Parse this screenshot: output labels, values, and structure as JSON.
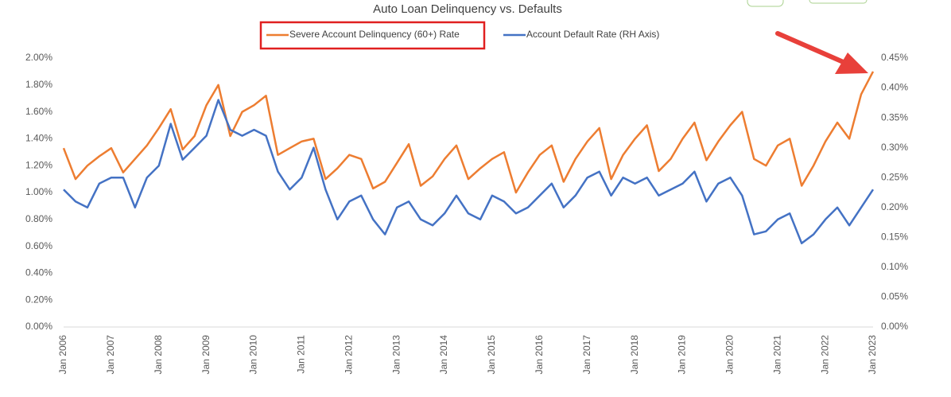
{
  "chart_data": {
    "type": "line",
    "title": "Auto Loan Delinquency vs. Defaults",
    "categories": [
      "Jan 2006",
      null,
      null,
      null,
      "Jan 2007",
      null,
      null,
      null,
      "Jan 2008",
      null,
      null,
      null,
      "Jan 2009",
      null,
      null,
      null,
      "Jan 2010",
      null,
      null,
      null,
      "Jan 2011",
      null,
      null,
      null,
      "Jan 2012",
      null,
      null,
      null,
      "Jan 2013",
      null,
      null,
      null,
      "Jan 2014",
      null,
      null,
      null,
      "Jan 2015",
      null,
      null,
      null,
      "Jan 2016",
      null,
      null,
      null,
      "Jan 2017",
      null,
      null,
      null,
      "Jan 2018",
      null,
      null,
      null,
      "Jan 2019",
      null,
      null,
      null,
      "Jan 2020",
      null,
      null,
      null,
      "Jan 2021",
      null,
      null,
      null,
      "Jan 2022",
      null,
      null,
      null,
      "Jan 2023"
    ],
    "series": [
      {
        "name": "Severe Account Delinquency (60+) Rate",
        "color": "#ED7D31",
        "axis": "y",
        "values": [
          1.33,
          1.1,
          1.2,
          1.27,
          1.33,
          1.15,
          1.25,
          1.35,
          1.48,
          1.62,
          1.32,
          1.42,
          1.65,
          1.8,
          1.42,
          1.6,
          1.65,
          1.72,
          1.28,
          1.33,
          1.38,
          1.4,
          1.1,
          1.18,
          1.28,
          1.25,
          1.03,
          1.08,
          1.22,
          1.36,
          1.05,
          1.12,
          1.25,
          1.35,
          1.1,
          1.18,
          1.25,
          1.3,
          1.0,
          1.15,
          1.28,
          1.35,
          1.08,
          1.25,
          1.38,
          1.48,
          1.1,
          1.28,
          1.4,
          1.5,
          1.16,
          1.25,
          1.4,
          1.52,
          1.24,
          1.38,
          1.5,
          1.6,
          1.25,
          1.2,
          1.35,
          1.4,
          1.05,
          1.2,
          1.38,
          1.52,
          1.4,
          1.73,
          1.9
        ]
      },
      {
        "name": "Account Default Rate (RH Axis)",
        "color": "#4472C4",
        "axis": "y2",
        "values": [
          0.23,
          0.21,
          0.2,
          0.24,
          0.25,
          0.25,
          0.2,
          0.25,
          0.27,
          0.34,
          0.28,
          0.3,
          0.32,
          0.38,
          0.33,
          0.32,
          0.33,
          0.32,
          0.26,
          0.23,
          0.25,
          0.3,
          0.23,
          0.18,
          0.21,
          0.22,
          0.18,
          0.155,
          0.2,
          0.21,
          0.18,
          0.17,
          0.19,
          0.22,
          0.19,
          0.18,
          0.22,
          0.21,
          0.19,
          0.2,
          0.22,
          0.24,
          0.2,
          0.22,
          0.25,
          0.26,
          0.22,
          0.25,
          0.24,
          0.25,
          0.22,
          0.23,
          0.24,
          0.26,
          0.21,
          0.24,
          0.25,
          0.22,
          0.155,
          0.16,
          0.18,
          0.19,
          0.14,
          0.155,
          0.18,
          0.2,
          0.17,
          0.2,
          0.23
        ]
      }
    ],
    "ylim": [
      0,
      2
    ],
    "yticks": [
      {
        "value": 0,
        "label": "0.00%"
      },
      {
        "value": 0.2,
        "label": "0.20%"
      },
      {
        "value": 0.4,
        "label": "0.40%"
      },
      {
        "value": 0.6,
        "label": "0.60%"
      },
      {
        "value": 0.8,
        "label": "0.80%"
      },
      {
        "value": 1,
        "label": "1.00%"
      },
      {
        "value": 1.2,
        "label": "1.20%"
      },
      {
        "value": 1.4,
        "label": "1.40%"
      },
      {
        "value": 1.6,
        "label": "1.60%"
      },
      {
        "value": 1.8,
        "label": "1.80%"
      },
      {
        "value": 2,
        "label": "2.00%"
      }
    ],
    "y2lim": [
      0,
      0.45
    ],
    "y2ticks": [
      {
        "value": 0,
        "label": "0.00%"
      },
      {
        "value": 0.05,
        "label": "0.05%"
      },
      {
        "value": 0.1,
        "label": "0.10%"
      },
      {
        "value": 0.15,
        "label": "0.15%"
      },
      {
        "value": 0.2,
        "label": "0.20%"
      },
      {
        "value": 0.25,
        "label": "0.25%"
      },
      {
        "value": 0.3,
        "label": "0.30%"
      },
      {
        "value": 0.35,
        "label": "0.35%"
      },
      {
        "value": 0.4,
        "label": "0.40%"
      },
      {
        "value": 0.45,
        "label": "0.45%"
      }
    ]
  }
}
